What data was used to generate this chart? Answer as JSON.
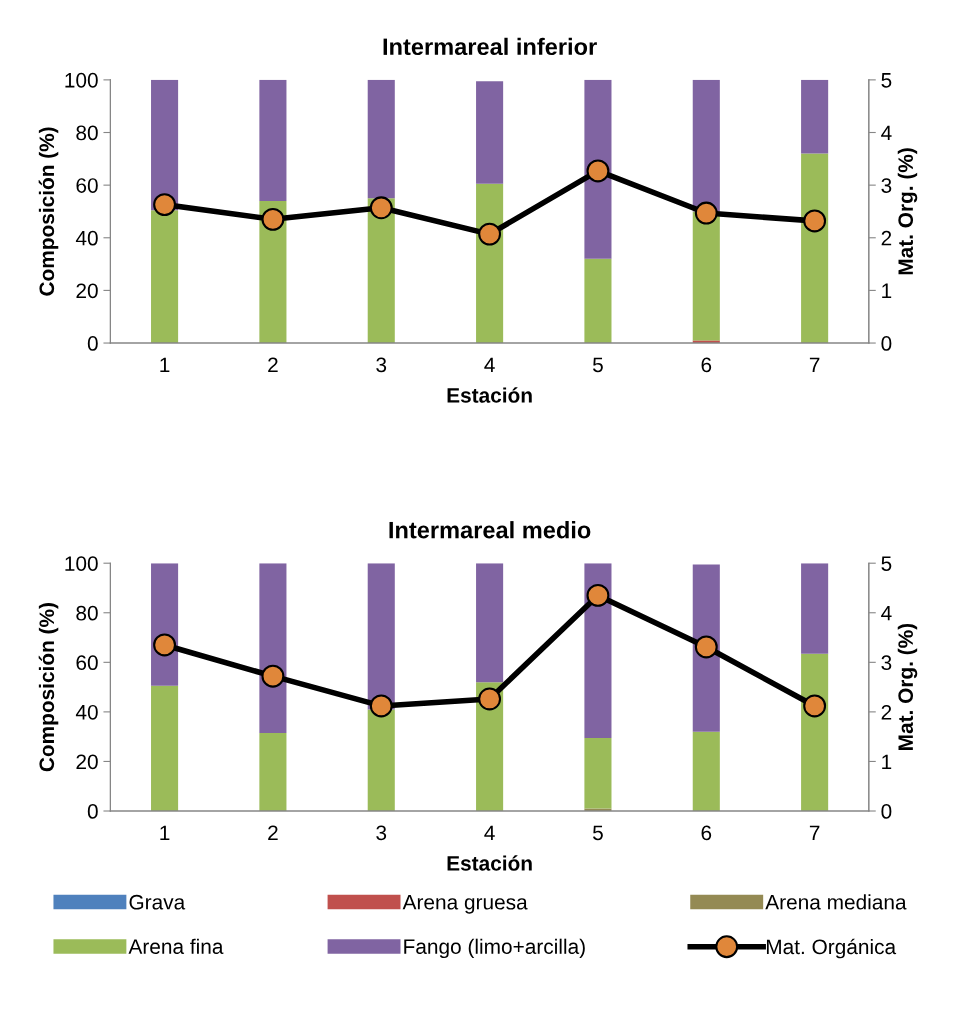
{
  "chart_data": [
    {
      "type": "bar",
      "title": "Intermareal inferior",
      "xlabel": "Estación",
      "ylabel": "Composición (%)",
      "y2label": "Mat. Org. (%)",
      "categories": [
        "1",
        "2",
        "3",
        "4",
        "5",
        "6",
        "7"
      ],
      "stacked": true,
      "ylim": [
        0,
        100
      ],
      "yticks": [
        0,
        20,
        40,
        60,
        80,
        100
      ],
      "y2lim": [
        0,
        5
      ],
      "y2ticks": [
        0,
        1,
        2,
        3,
        4,
        5
      ],
      "grid": false,
      "legend": false,
      "marker": "circle",
      "series": [
        {
          "color": "#4f81bd",
          "values": [
            0,
            0,
            0,
            0,
            0,
            0,
            0
          ]
        },
        {
          "color": "#c0504d",
          "values": [
            0,
            0,
            0,
            0,
            0,
            1,
            0
          ]
        },
        {
          "color": "#948a54",
          "values": [
            0,
            0,
            0,
            null,
            0,
            0,
            0
          ]
        },
        {
          "color": "#9bbb59",
          "values": [
            50.5,
            54,
            55,
            60.5,
            32,
            49,
            72
          ]
        },
        {
          "color": "#8064a2",
          "values": [
            49.5,
            46,
            45,
            39,
            68,
            50,
            28
          ]
        },
        {
          "type": "line",
          "axis": "y2",
          "color": "#e0873a",
          "values": [
            2.63,
            2.35,
            2.57,
            2.07,
            3.27,
            2.47,
            2.32
          ]
        }
      ]
    },
    {
      "type": "bar",
      "title": "Intermareal medio",
      "xlabel": "Estación",
      "ylabel": "Composición (%)",
      "y2label": "Mat. Org. (%)",
      "categories": [
        "1",
        "2",
        "3",
        "4",
        "5",
        "6",
        "7"
      ],
      "stacked": true,
      "ylim": [
        0,
        100
      ],
      "yticks": [
        0,
        20,
        40,
        60,
        80,
        100
      ],
      "y2lim": [
        0,
        5
      ],
      "y2ticks": [
        0,
        1,
        2,
        3,
        4,
        5
      ],
      "grid": false,
      "legend": "bottom",
      "marker": "circle",
      "series": [
        {
          "name": "Grava",
          "color": "#4f81bd",
          "values": [
            0,
            0,
            0,
            0,
            0,
            0,
            0
          ]
        },
        {
          "name": "Arena gruesa",
          "color": "#c0504d",
          "values": [
            0,
            0,
            0,
            0,
            0,
            0,
            0
          ]
        },
        {
          "name": "Arena mediana",
          "color": "#948a54",
          "values": [
            0,
            0,
            0,
            0,
            1,
            null,
            0
          ]
        },
        {
          "name": "Arena fina",
          "color": "#9bbb59",
          "values": [
            50.5,
            31.5,
            41,
            52,
            28.5,
            32,
            63.5
          ]
        },
        {
          "name": "Fango (limo+arcilla)",
          "color": "#8064a2",
          "values": [
            49.5,
            68.5,
            59,
            48,
            70.5,
            67.5,
            36.5
          ]
        },
        {
          "name": "Mat. Orgánica",
          "type": "line",
          "axis": "y2",
          "color": "#e0873a",
          "values": [
            3.35,
            2.72,
            2.12,
            2.26,
            4.35,
            3.31,
            2.12
          ]
        }
      ]
    }
  ]
}
